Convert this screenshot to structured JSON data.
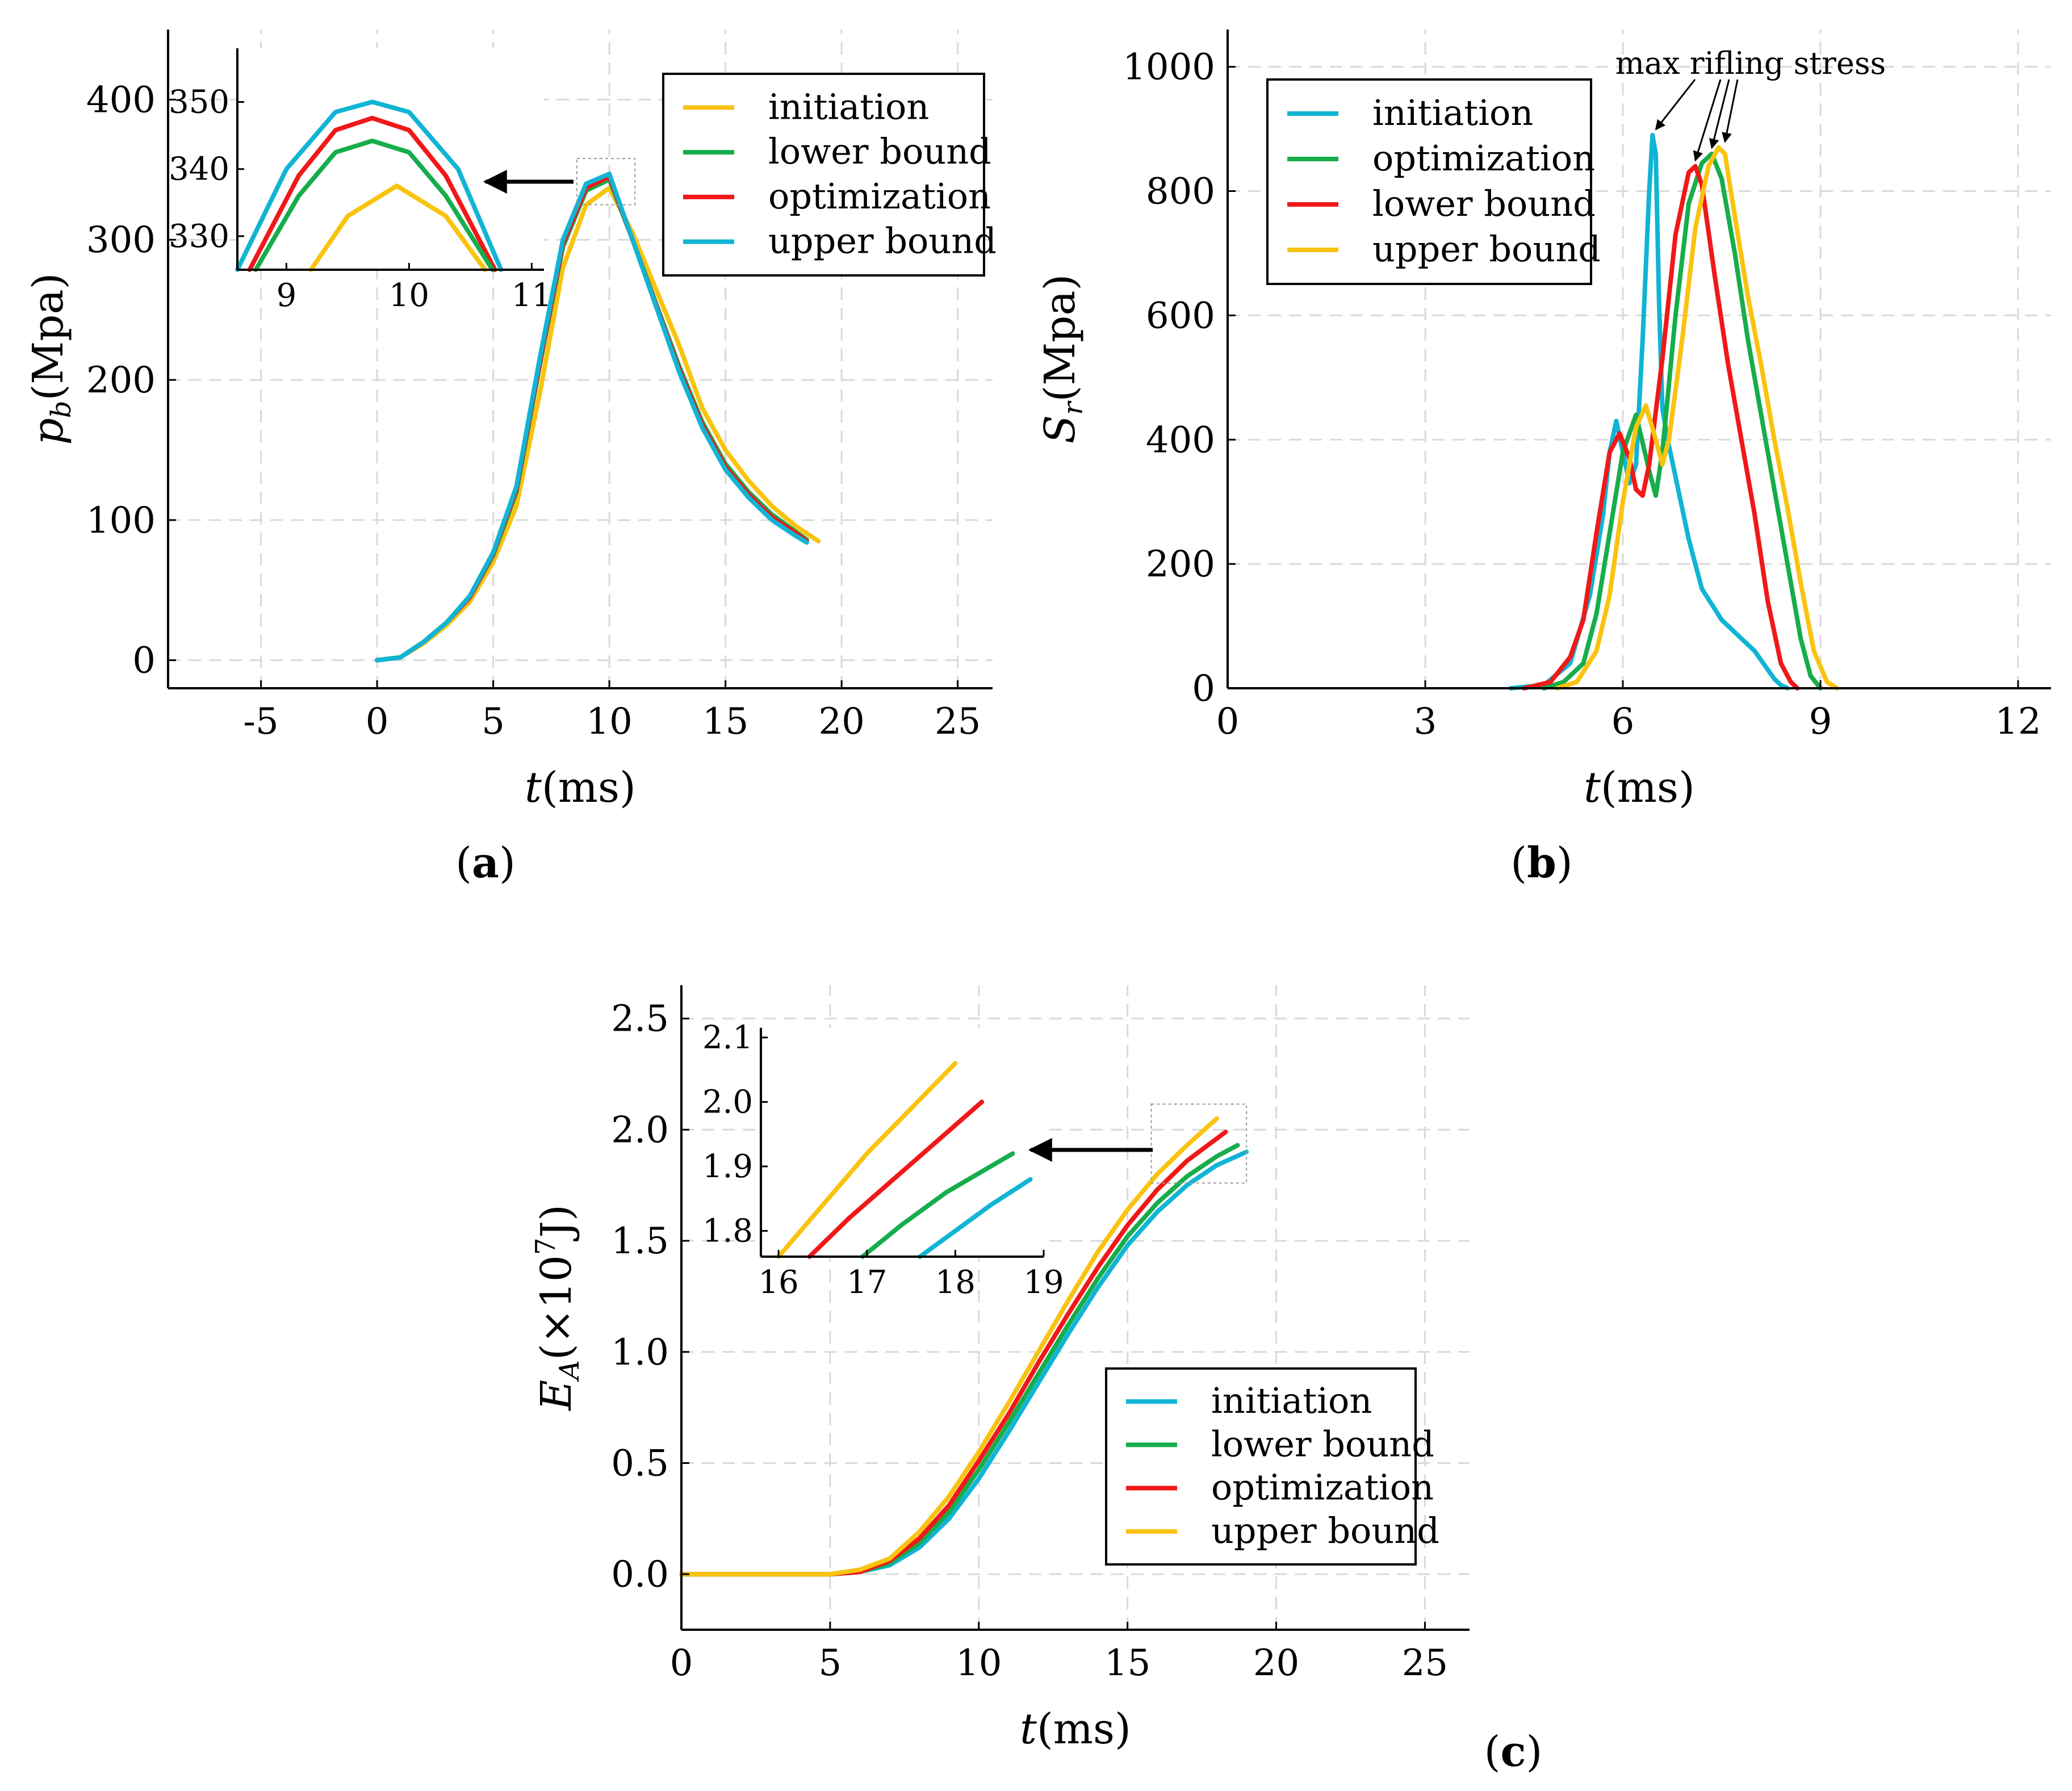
{
  "colors": {
    "cyan": "#10b4d4",
    "green": "#16ad4a",
    "red": "#f01818",
    "yellow": "#f9c30f",
    "grid": "#d9d9d9",
    "axis": "#000000"
  },
  "chart_data": [
    {
      "panel_label": "(a)",
      "type": "line",
      "ylabel_main": "p",
      "ylabel_sub": "b",
      "ylabel_unit": "(Mpa)",
      "xlabel_main": "t",
      "xlabel_unit": "(ms)",
      "xlim": [
        -9,
        26.5
      ],
      "ylim": [
        -20,
        450
      ],
      "xticks": [
        "-5",
        "0",
        "5",
        "10",
        "15",
        "20",
        "25"
      ],
      "yticks": [
        "0",
        "100",
        "200",
        "300",
        "400"
      ],
      "grid": true,
      "legend": [
        "initiation",
        "lower bound",
        "optimization",
        "upper bound"
      ],
      "legend_placement": "top-right",
      "series": [
        {
          "name": "initiation",
          "color": "#f9c30f",
          "x": [
            0,
            1,
            2,
            3,
            4,
            5,
            6,
            7,
            8,
            9,
            10,
            11,
            12,
            13,
            14,
            15,
            16,
            17,
            18,
            19
          ],
          "y": [
            0,
            2,
            12,
            25,
            42,
            70,
            110,
            190,
            280,
            325,
            337,
            305,
            265,
            225,
            180,
            150,
            128,
            110,
            96,
            85
          ]
        },
        {
          "name": "lower bound",
          "color": "#16ad4a",
          "x": [
            0,
            1,
            2,
            3,
            4,
            5,
            6,
            7,
            8,
            9,
            10,
            11,
            12,
            13,
            14,
            15,
            16,
            17,
            18,
            18.5
          ],
          "y": [
            0,
            2,
            13,
            27,
            45,
            75,
            120,
            210,
            295,
            335,
            343,
            300,
            255,
            210,
            170,
            140,
            120,
            104,
            92,
            86
          ]
        },
        {
          "name": "optimization",
          "color": "#f01818",
          "x": [
            0,
            1,
            2,
            3,
            4,
            5,
            6,
            7,
            8,
            9,
            10,
            11,
            12,
            13,
            14,
            15,
            16,
            17,
            18,
            18.5
          ],
          "y": [
            0,
            2,
            13,
            27,
            45,
            76,
            122,
            212,
            297,
            337,
            345,
            300,
            254,
            208,
            168,
            138,
            118,
            102,
            91,
            85
          ]
        },
        {
          "name": "upper bound",
          "color": "#10b4d4",
          "x": [
            0,
            1,
            2,
            3,
            4,
            5,
            6,
            7,
            8,
            9,
            10,
            11,
            12,
            13,
            14,
            15,
            16,
            17,
            18,
            18.5
          ],
          "y": [
            0,
            2,
            13,
            27,
            46,
            77,
            124,
            215,
            300,
            340,
            347,
            300,
            253,
            206,
            166,
            136,
            116,
            100,
            89,
            84
          ]
        }
      ],
      "inset": {
        "xlim": [
          8.6,
          11.1
        ],
        "ylim": [
          325,
          358
        ],
        "xticks": [
          "9",
          "10",
          "11"
        ],
        "yticks": [
          "330",
          "340",
          "350"
        ],
        "series": [
          {
            "name": "upper bound",
            "color": "#10b4d4",
            "x": [
              8.6,
              9.0,
              9.4,
              9.7,
              10.0,
              10.4,
              10.75
            ],
            "y": [
              325,
              340,
              348.5,
              350,
              348.5,
              340,
              325
            ]
          },
          {
            "name": "optimization",
            "color": "#f01818",
            "x": [
              8.7,
              9.1,
              9.4,
              9.7,
              10.0,
              10.3,
              10.7
            ],
            "y": [
              325,
              339,
              345.8,
              347.6,
              345.8,
              339,
              325
            ]
          },
          {
            "name": "lower bound",
            "color": "#16ad4a",
            "x": [
              8.75,
              9.1,
              9.4,
              9.7,
              10.0,
              10.3,
              10.68
            ],
            "y": [
              325,
              336,
              342.5,
              344.2,
              342.5,
              336,
              325
            ]
          },
          {
            "name": "initiation",
            "color": "#f9c30f",
            "x": [
              9.2,
              9.5,
              9.9,
              10.3,
              10.62
            ],
            "y": [
              325,
              333,
              337.5,
              333,
              325
            ]
          }
        ]
      }
    },
    {
      "panel_label": "(b)",
      "type": "line",
      "ylabel_main": "S",
      "ylabel_sub": "r",
      "ylabel_unit": "(Mpa)",
      "xlabel_main": "t",
      "xlabel_unit": "(ms)",
      "xlim": [
        0,
        12.5
      ],
      "ylim": [
        0,
        1060
      ],
      "xticks": [
        "0",
        "3",
        "6",
        "9",
        "12"
      ],
      "yticks": [
        "0",
        "200",
        "400",
        "600",
        "800",
        "1000"
      ],
      "grid": true,
      "annotation": "max rifling stress",
      "legend": [
        "initiation",
        "optimization",
        "lower bound",
        "upper bound"
      ],
      "legend_placement": "top-left",
      "series": [
        {
          "name": "initiation",
          "color": "#10b4d4",
          "x": [
            4.3,
            4.8,
            5.2,
            5.5,
            5.7,
            5.8,
            5.9,
            6.0,
            6.1,
            6.2,
            6.3,
            6.4,
            6.45,
            6.5,
            6.55,
            6.6,
            6.7,
            6.8,
            7.0,
            7.2,
            7.5,
            7.8,
            8.0,
            8.2,
            8.3,
            8.4,
            8.5
          ],
          "y": [
            0,
            5,
            40,
            150,
            280,
            380,
            430,
            380,
            330,
            360,
            560,
            800,
            890,
            860,
            620,
            450,
            390,
            340,
            240,
            160,
            110,
            80,
            60,
            30,
            15,
            5,
            0
          ]
        },
        {
          "name": "optimization",
          "color": "#16ad4a",
          "x": [
            4.8,
            5.1,
            5.4,
            5.6,
            5.8,
            6.0,
            6.2,
            6.4,
            6.5,
            6.6,
            6.8,
            7.0,
            7.2,
            7.35,
            7.5,
            7.7,
            7.9,
            8.1,
            8.3,
            8.5,
            8.7,
            8.85,
            9.0
          ],
          "y": [
            0,
            10,
            40,
            120,
            250,
            380,
            440,
            350,
            310,
            380,
            600,
            780,
            845,
            860,
            820,
            700,
            560,
            440,
            320,
            200,
            80,
            20,
            0
          ]
        },
        {
          "name": "lower bound",
          "color": "#f01818",
          "x": [
            4.5,
            4.9,
            5.2,
            5.4,
            5.6,
            5.8,
            5.95,
            6.1,
            6.2,
            6.3,
            6.4,
            6.6,
            6.8,
            7.0,
            7.1,
            7.2,
            7.4,
            7.6,
            7.8,
            8.0,
            8.2,
            8.4,
            8.55,
            8.65
          ],
          "y": [
            0,
            10,
            50,
            110,
            250,
            380,
            410,
            370,
            320,
            310,
            360,
            530,
            730,
            830,
            840,
            810,
            660,
            520,
            400,
            280,
            140,
            40,
            10,
            0
          ]
        },
        {
          "name": "upper bound",
          "color": "#f9c30f",
          "x": [
            5.0,
            5.3,
            5.6,
            5.8,
            6.0,
            6.2,
            6.35,
            6.5,
            6.6,
            6.7,
            6.9,
            7.1,
            7.3,
            7.45,
            7.55,
            7.7,
            7.9,
            8.1,
            8.3,
            8.5,
            8.7,
            8.9,
            9.1,
            9.25
          ],
          "y": [
            0,
            10,
            60,
            150,
            300,
            420,
            455,
            400,
            360,
            400,
            560,
            740,
            840,
            870,
            860,
            760,
            630,
            520,
            400,
            290,
            170,
            60,
            10,
            0
          ]
        }
      ]
    },
    {
      "panel_label": "(c)",
      "type": "line",
      "ylabel_main": "E",
      "ylabel_sub": "A",
      "ylabel_unit": "(×10",
      "ylabel_sup": "7",
      "ylabel_unit_end": "J)",
      "xlabel_main": "t",
      "xlabel_unit": "(ms)",
      "xlim": [
        0,
        26.5
      ],
      "ylim": [
        -0.25,
        2.65
      ],
      "xticks": [
        "0",
        "5",
        "10",
        "15",
        "20",
        "25"
      ],
      "yticks": [
        "0.0",
        "0.5",
        "1.0",
        "1.5",
        "2.0",
        "2.5"
      ],
      "grid": true,
      "legend": [
        "initiation",
        "lower bound",
        "optimization",
        "upper bound"
      ],
      "legend_placement": "bottom-right",
      "series": [
        {
          "name": "initiation",
          "color": "#10b4d4",
          "x": [
            0,
            2,
            4,
            5,
            6,
            7,
            8,
            9,
            10,
            11,
            12,
            13,
            14,
            15,
            16,
            17,
            18,
            19
          ],
          "y": [
            0,
            0,
            0,
            0,
            0.01,
            0.04,
            0.12,
            0.25,
            0.43,
            0.64,
            0.86,
            1.08,
            1.29,
            1.48,
            1.63,
            1.75,
            1.84,
            1.9
          ]
        },
        {
          "name": "lower bound",
          "color": "#16ad4a",
          "x": [
            0,
            2,
            4,
            5,
            6,
            7,
            8,
            9,
            10,
            11,
            12,
            13,
            14,
            15,
            16,
            17,
            18,
            18.7
          ],
          "y": [
            0,
            0,
            0,
            0,
            0.01,
            0.05,
            0.14,
            0.28,
            0.47,
            0.68,
            0.9,
            1.12,
            1.33,
            1.52,
            1.67,
            1.79,
            1.88,
            1.93
          ]
        },
        {
          "name": "optimization",
          "color": "#f01818",
          "x": [
            0,
            2,
            4,
            5,
            6,
            7,
            8,
            9,
            10,
            11,
            12,
            13,
            14,
            15,
            16,
            17,
            18,
            18.3
          ],
          "y": [
            0,
            0,
            0,
            0,
            0.01,
            0.06,
            0.16,
            0.31,
            0.51,
            0.72,
            0.95,
            1.17,
            1.38,
            1.57,
            1.73,
            1.86,
            1.96,
            1.99
          ]
        },
        {
          "name": "upper bound",
          "color": "#f9c30f",
          "x": [
            0,
            2,
            4,
            5,
            6,
            7,
            8,
            9,
            10,
            11,
            12,
            13,
            14,
            15,
            16,
            17,
            18
          ],
          "y": [
            0,
            0,
            0,
            0,
            0.02,
            0.07,
            0.19,
            0.35,
            0.55,
            0.77,
            1.0,
            1.23,
            1.45,
            1.64,
            1.8,
            1.93,
            2.05
          ]
        }
      ],
      "inset": {
        "xlim": [
          15.8,
          19.0
        ],
        "ylim": [
          1.76,
          2.115
        ],
        "xticks": [
          "16",
          "17",
          "18",
          "19"
        ],
        "yticks": [
          "1.8",
          "1.9",
          "2.0",
          "2.1"
        ],
        "series": [
          {
            "name": "upper bound",
            "color": "#f9c30f",
            "x": [
              16.0,
              16.5,
              17.0,
              17.5,
              18.0
            ],
            "y": [
              1.76,
              1.84,
              1.92,
              1.99,
              2.06
            ]
          },
          {
            "name": "optimization",
            "color": "#f01818",
            "x": [
              16.35,
              16.8,
              17.3,
              17.8,
              18.3
            ],
            "y": [
              1.76,
              1.82,
              1.88,
              1.94,
              2.0
            ]
          },
          {
            "name": "lower bound",
            "color": "#16ad4a",
            "x": [
              16.95,
              17.4,
              17.9,
              18.65
            ],
            "y": [
              1.76,
              1.81,
              1.86,
              1.92
            ]
          },
          {
            "name": "initiation",
            "color": "#10b4d4",
            "x": [
              17.6,
              18.0,
              18.4,
              18.85
            ],
            "y": [
              1.76,
              1.8,
              1.84,
              1.88
            ]
          }
        ]
      }
    }
  ]
}
